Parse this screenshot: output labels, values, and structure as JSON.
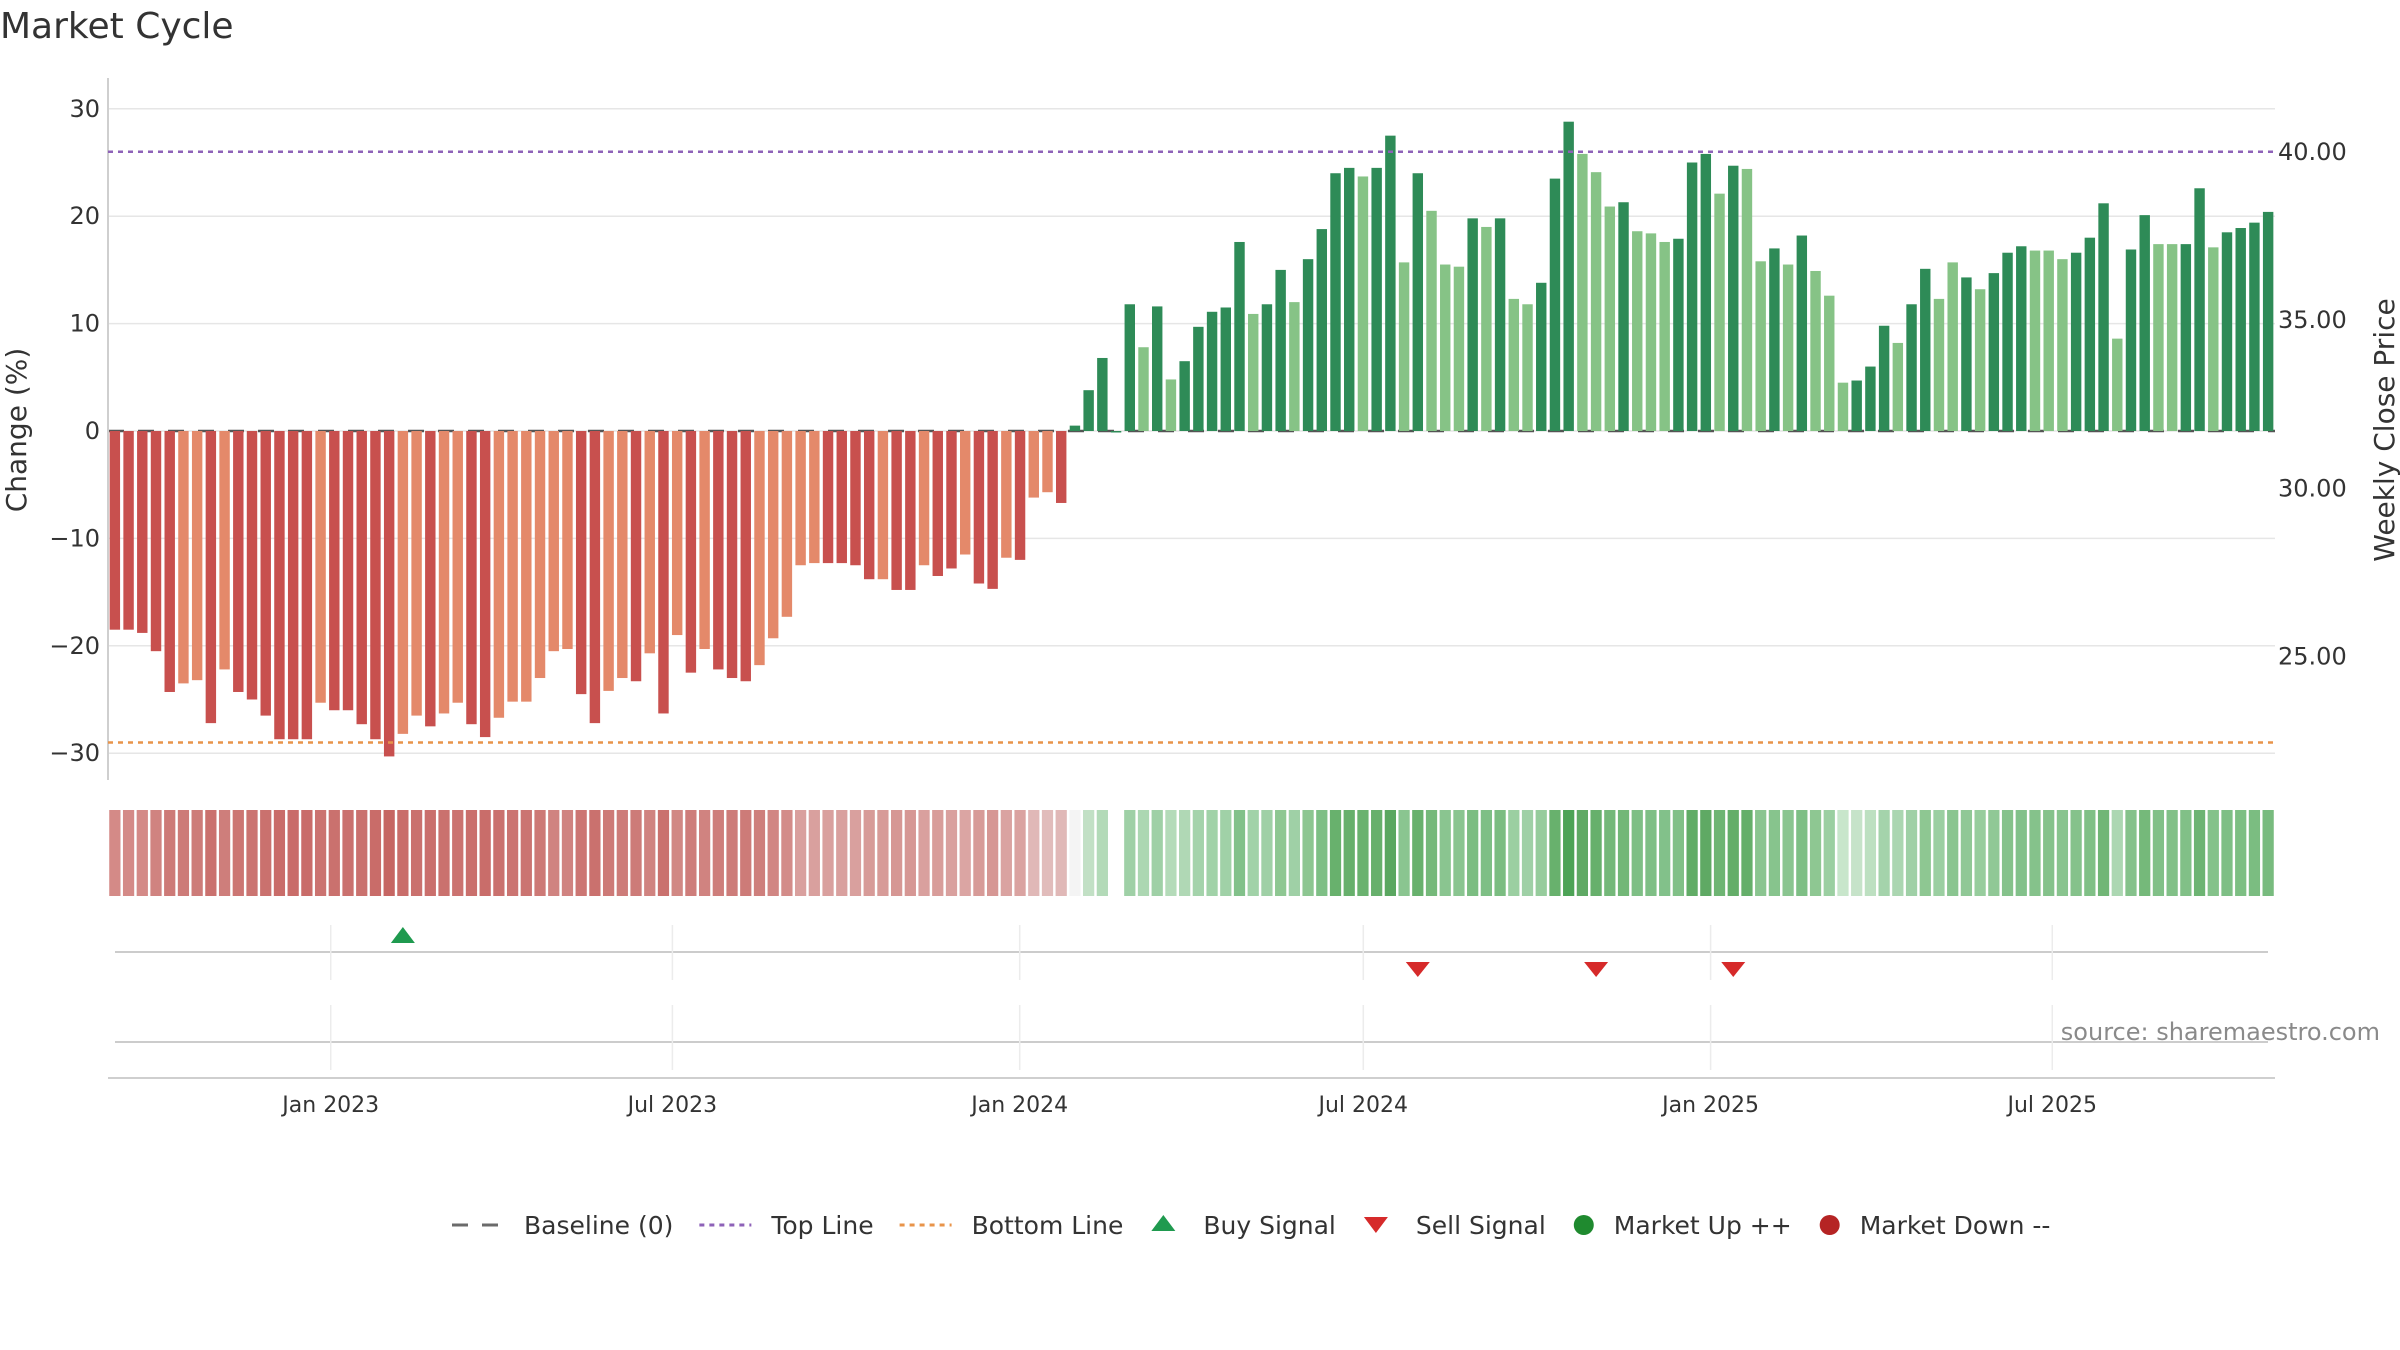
{
  "chart_data": {
    "type": "bar",
    "title": "Market Cycle",
    "ylabel_left": "Change (%)",
    "ylabel_right": "Weekly Close Price",
    "y_left_range": [
      -32,
      33
    ],
    "y_left_ticks": [
      30,
      20,
      10,
      0,
      -10,
      -20,
      -30
    ],
    "y_left_tick_labels": [
      "30",
      "20",
      "10",
      "0",
      "−10",
      "−20",
      "−30"
    ],
    "y_right_ticks": [
      40,
      35,
      30,
      25
    ],
    "y_right_tick_labels": [
      "40.00",
      "35.00",
      "30.00",
      "25.00"
    ],
    "y_right_to_left_map": {
      "40": 26,
      "25": -21
    },
    "top_line": 26,
    "bottom_line": -29,
    "baseline": 0,
    "start_date": "2022-09-05",
    "end_date": "2025-10-27",
    "x_ticks": [
      {
        "date": "2023-01-01",
        "label": "Jan 2023"
      },
      {
        "date": "2023-07-01",
        "label": "Jul 2023"
      },
      {
        "date": "2024-01-01",
        "label": "Jan 2024"
      },
      {
        "date": "2024-07-01",
        "label": "Jul 2024"
      },
      {
        "date": "2025-01-01",
        "label": "Jan 2025"
      },
      {
        "date": "2025-07-01",
        "label": "Jul 2025"
      }
    ],
    "values": [
      -18.5,
      -18.5,
      -18.8,
      -20.5,
      -24.3,
      -23.5,
      -23.2,
      -27.2,
      -22.2,
      -24.3,
      -25,
      -26.5,
      -28.7,
      -28.7,
      -28.7,
      -25.3,
      -26,
      -26,
      -27.3,
      -28.7,
      -30.3,
      -28.2,
      -26.5,
      -27.5,
      -26.3,
      -25.3,
      -27.3,
      -28.5,
      -26.7,
      -25.2,
      -25.2,
      -23,
      -20.5,
      -20.3,
      -24.5,
      -27.2,
      -24.2,
      -23,
      -23.3,
      -20.7,
      -26.3,
      -19,
      -22.5,
      -20.3,
      -22.2,
      -23,
      -23.3,
      -21.8,
      -19.3,
      -17.3,
      -12.5,
      -12.3,
      -12.3,
      -12.3,
      -12.5,
      -13.8,
      -13.8,
      -14.8,
      -14.8,
      -12.5,
      -13.5,
      -12.8,
      -11.5,
      -14.2,
      -14.7,
      -11.8,
      -12,
      -6.2,
      -5.7,
      -6.7,
      0.5,
      3.8,
      6.8,
      0,
      11.8,
      7.8,
      11.6,
      4.8,
      6.5,
      9.7,
      11.1,
      11.5,
      17.6,
      10.9,
      11.8,
      15,
      12,
      16,
      18.8,
      24,
      24.5,
      23.7,
      24.5,
      27.5,
      15.7,
      24,
      20.5,
      15.5,
      15.3,
      19.8,
      19,
      19.8,
      12.3,
      11.8,
      13.8,
      23.5,
      28.8,
      25.8,
      24.1,
      20.9,
      21.3,
      18.6,
      18.4,
      17.6,
      17.9,
      25,
      25.8,
      22.1,
      24.7,
      24.4,
      15.8,
      17,
      15.5,
      18.2,
      14.9,
      12.6,
      4.5,
      4.7,
      6,
      9.8,
      8.2,
      11.8,
      15.1,
      12.3,
      15.7,
      14.3,
      13.2,
      14.7,
      16.6,
      17.2,
      16.8,
      16.8,
      16,
      16.6,
      18,
      21.2,
      8.6,
      16.9,
      20.1,
      17.4,
      17.4,
      17.4,
      22.6,
      17.1,
      18.5,
      18.9,
      19.4,
      20.4
    ],
    "bar_colors": [
      "#c8504e",
      "#c8504e",
      "#c8504e",
      "#c8504e",
      "#c8504e",
      "#e4896a",
      "#e4896a",
      "#c8504e",
      "#e4896a",
      "#c8504e",
      "#c8504e",
      "#c8504e",
      "#c8504e",
      "#c8504e",
      "#c8504e",
      "#e4896a",
      "#c8504e",
      "#c8504e",
      "#c8504e",
      "#c8504e",
      "#c8504e",
      "#e4896a",
      "#e4896a",
      "#c8504e",
      "#e4896a",
      "#e4896a",
      "#c8504e",
      "#c8504e",
      "#e4896a",
      "#e4896a",
      "#e4896a",
      "#e4896a",
      "#e4896a",
      "#e4896a",
      "#c8504e",
      "#c8504e",
      "#e4896a",
      "#e4896a",
      "#c8504e",
      "#e4896a",
      "#c8504e",
      "#e4896a",
      "#c8504e",
      "#e4896a",
      "#c8504e",
      "#c8504e",
      "#c8504e",
      "#e4896a",
      "#e4896a",
      "#e4896a",
      "#e4896a",
      "#e4896a",
      "#c8504e",
      "#c8504e",
      "#c8504e",
      "#c8504e",
      "#e4896a",
      "#c8504e",
      "#c8504e",
      "#e4896a",
      "#c8504e",
      "#c8504e",
      "#e4896a",
      "#c8504e",
      "#c8504e",
      "#e4896a",
      "#c8504e",
      "#e4896a",
      "#e4896a",
      "#c8504e",
      "#2e8b57",
      "#2e8b57",
      "#2e8b57",
      "#2e8b57",
      "#2e8b57",
      "#86c386",
      "#2e8b57",
      "#86c386",
      "#2e8b57",
      "#2e8b57",
      "#2e8b57",
      "#2e8b57",
      "#2e8b57",
      "#86c386",
      "#2e8b57",
      "#2e8b57",
      "#86c386",
      "#2e8b57",
      "#2e8b57",
      "#2e8b57",
      "#2e8b57",
      "#86c386",
      "#2e8b57",
      "#2e8b57",
      "#86c386",
      "#2e8b57",
      "#86c386",
      "#86c386",
      "#86c386",
      "#2e8b57",
      "#86c386",
      "#2e8b57",
      "#86c386",
      "#86c386",
      "#2e8b57",
      "#2e8b57",
      "#2e8b57",
      "#86c386",
      "#86c386",
      "#86c386",
      "#2e8b57",
      "#86c386",
      "#86c386",
      "#86c386",
      "#2e8b57",
      "#2e8b57",
      "#2e8b57",
      "#86c386",
      "#2e8b57",
      "#86c386",
      "#86c386",
      "#2e8b57",
      "#86c386",
      "#2e8b57",
      "#86c386",
      "#86c386",
      "#86c386",
      "#2e8b57",
      "#2e8b57",
      "#2e8b57",
      "#86c386",
      "#2e8b57",
      "#2e8b57",
      "#86c386",
      "#86c386",
      "#2e8b57",
      "#86c386",
      "#2e8b57",
      "#2e8b57",
      "#2e8b57",
      "#86c386",
      "#86c386",
      "#86c386",
      "#2e8b57",
      "#2e8b57",
      "#2e8b57",
      "#86c386",
      "#2e8b57",
      "#2e8b57",
      "#86c386",
      "#86c386",
      "#2e8b57",
      "#2e8b57",
      "#86c386",
      "#2e8b57",
      "#2e8b57",
      "#2e8b57",
      "#2e8b57"
    ],
    "heat_colors": [
      "#d48a87",
      "#d48a87",
      "#d48a87",
      "#d08380",
      "#cd7a77",
      "#cd7b78",
      "#cd7c79",
      "#ca716e",
      "#ce7e7b",
      "#cc7673",
      "#cb7471",
      "#ca716e",
      "#c96c69",
      "#c96c69",
      "#c96c69",
      "#cb7370",
      "#ca716e",
      "#ca716e",
      "#ca716e",
      "#c96c69",
      "#c66663",
      "#c96d6a",
      "#ca716e",
      "#ca6f6c",
      "#ca716e",
      "#cb7370",
      "#ca6f6c",
      "#c96d6a",
      "#ca716e",
      "#cb7471",
      "#cb7471",
      "#cd7976",
      "#d08380",
      "#d08380",
      "#cc7673",
      "#ca716e",
      "#cd7a77",
      "#cd7c79",
      "#cd7b78",
      "#d08380",
      "#ca716e",
      "#d18884",
      "#ce7d7a",
      "#d08380",
      "#ce7e7b",
      "#cd7c79",
      "#cd7b78",
      "#ce7f7c",
      "#d18683",
      "#d38c89",
      "#d9a09e",
      "#d9a09e",
      "#d9a09e",
      "#d9a09e",
      "#d9a09e",
      "#d79b98",
      "#d79b98",
      "#d69794",
      "#d69794",
      "#d9a09e",
      "#d89d9a",
      "#d9a09e",
      "#dba5a3",
      "#d79b98",
      "#d69794",
      "#daa3a1",
      "#daa3a1",
      "#e0b8b7",
      "#e1bcbb",
      "#e0b8b7",
      "#f4f4f4",
      "#c2e0c5",
      "#b3dab8",
      "#ffffff",
      "#9fd0a6",
      "#acd7b2",
      "#9fd0a6",
      "#b4dbb9",
      "#b0d8b5",
      "#a4d3ab",
      "#a1d2a8",
      "#a0d1a7",
      "#82c18a",
      "#a1d2a8",
      "#9fd0a6",
      "#8ec792",
      "#9fd0a6",
      "#8dc691",
      "#7ebf85",
      "#68b16d",
      "#67b06c",
      "#6ab26f",
      "#67b06c",
      "#5aa760",
      "#8ac590",
      "#68b16d",
      "#75b97a",
      "#8ac590",
      "#8ac590",
      "#7bbd81",
      "#7ebf85",
      "#7bbd81",
      "#9bcfa1",
      "#9fd0a6",
      "#96cc9c",
      "#68b16d",
      "#4da356",
      "#5fa964",
      "#67b06c",
      "#74b879",
      "#72b777",
      "#7ebf85",
      "#7ebf85",
      "#82c18a",
      "#81c087",
      "#61ac66",
      "#5fa964",
      "#6eb573",
      "#64ae69",
      "#65af6a",
      "#8ac590",
      "#87c48d",
      "#8ac590",
      "#7ebf85",
      "#8ec792",
      "#9bcfa1",
      "#c8e6cb",
      "#c6e3c9",
      "#bde0c1",
      "#a4d3ab",
      "#abd6b1",
      "#9fd0a6",
      "#8ec792",
      "#9bcfa1",
      "#8ac590",
      "#90c896",
      "#97cd9d",
      "#90c896",
      "#85c28b",
      "#82c18a",
      "#85c28b",
      "#85c28b",
      "#88c48e",
      "#85c28b",
      "#80c086",
      "#71b676",
      "#acd7b2",
      "#85c28b",
      "#75b97a",
      "#81c087",
      "#81c087",
      "#81c087",
      "#6db473",
      "#84c28a",
      "#7ebf85",
      "#7dbf83",
      "#7bbd81",
      "#78bb7e"
    ],
    "buy_signals": [
      {
        "index": 21
      }
    ],
    "sell_signals": [
      {
        "index": 95
      },
      {
        "index": 108
      },
      {
        "index": 118
      }
    ],
    "legend": [
      {
        "type": "dash",
        "label": "Baseline (0)",
        "color": "#6b6b6b"
      },
      {
        "type": "dot",
        "label": "Top Line",
        "color": "#8e62b8"
      },
      {
        "type": "dot",
        "label": "Bottom Line",
        "color": "#e8944a"
      },
      {
        "type": "tri-up",
        "label": "Buy Signal",
        "color": "#1f9a4f"
      },
      {
        "type": "tri-down",
        "label": "Sell Signal",
        "color": "#d62a2a"
      },
      {
        "type": "circle",
        "label": "Market Up ++",
        "color": "#1f8a2f"
      },
      {
        "type": "circle",
        "label": "Market Down --",
        "color": "#b52424"
      }
    ],
    "legend_position": "bottom",
    "source": "source: sharemaestro.com"
  },
  "colors": {
    "grid": "#e6e6e6",
    "axis": "#cfcfcf",
    "baseline": "#555555",
    "top_line": "#8e62b8",
    "bottom_line": "#e8944a",
    "buy": "#1f9a4f",
    "sell": "#d62a2a"
  }
}
